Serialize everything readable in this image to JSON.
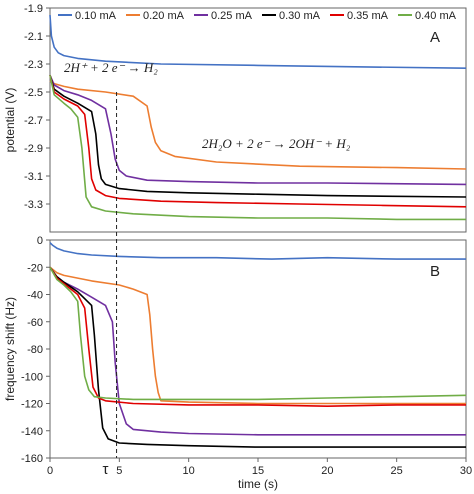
{
  "legend": [
    {
      "label": "0.10 mA",
      "color": "#4472C4"
    },
    {
      "label": "0.20 mA",
      "color": "#ED7D31"
    },
    {
      "label": "0.25 mA",
      "color": "#7030A0"
    },
    {
      "label": "0.30 mA",
      "color": "#000000"
    },
    {
      "label": "0.35 mA",
      "color": "#E00000"
    },
    {
      "label": "0.40 mA",
      "color": "#70AD47"
    }
  ],
  "chart_data": [
    {
      "type": "line",
      "panel_label": "A",
      "xlabel": "",
      "ylabel": "potential (V)",
      "xlim": [
        0,
        30
      ],
      "ylim": [
        -3.5,
        -1.9
      ],
      "yticks": [
        -1.9,
        -2.1,
        -2.3,
        -2.5,
        -2.7,
        -2.9,
        -3.1,
        -3.3
      ],
      "grid": false,
      "annotations": [
        "2H⁺ + 2 e⁻ → H₂",
        "2H₂O + 2 e⁻ → 2OH⁻ + H₂"
      ],
      "series": [
        {
          "name": "0.10 mA",
          "x": [
            0,
            0.1,
            0.3,
            0.6,
            1,
            2,
            4,
            8,
            15,
            22,
            30
          ],
          "y": [
            -1.95,
            -2.1,
            -2.18,
            -2.22,
            -2.24,
            -2.26,
            -2.28,
            -2.3,
            -2.31,
            -2.32,
            -2.33
          ]
        },
        {
          "name": "0.20 mA",
          "x": [
            0,
            0.3,
            1,
            2,
            4,
            6,
            7,
            7.3,
            7.6,
            8,
            9,
            12,
            18,
            25,
            30
          ],
          "y": [
            -2.42,
            -2.44,
            -2.46,
            -2.48,
            -2.5,
            -2.53,
            -2.6,
            -2.75,
            -2.86,
            -2.92,
            -2.96,
            -3.0,
            -3.03,
            -3.04,
            -3.05
          ]
        },
        {
          "name": "0.25 mA",
          "x": [
            0,
            0.3,
            1,
            2,
            3,
            4,
            4.4,
            4.7,
            5,
            5.5,
            7,
            10,
            15,
            20,
            30
          ],
          "y": [
            -2.38,
            -2.45,
            -2.49,
            -2.52,
            -2.56,
            -2.62,
            -2.8,
            -2.98,
            -3.06,
            -3.1,
            -3.13,
            -3.14,
            -3.15,
            -3.15,
            -3.16
          ]
        },
        {
          "name": "0.30 mA",
          "x": [
            0,
            0.3,
            1,
            2,
            3,
            3.3,
            3.5,
            3.7,
            4,
            5,
            7,
            10,
            15,
            20,
            30
          ],
          "y": [
            -2.38,
            -2.48,
            -2.53,
            -2.58,
            -2.64,
            -2.8,
            -3.02,
            -3.12,
            -3.16,
            -3.19,
            -3.21,
            -3.22,
            -3.23,
            -3.24,
            -3.25
          ]
        },
        {
          "name": "0.35 mA",
          "x": [
            0,
            0.3,
            1,
            2,
            2.5,
            2.8,
            3.0,
            3.3,
            4,
            5,
            8,
            12,
            18,
            24,
            30
          ],
          "y": [
            -2.38,
            -2.5,
            -2.55,
            -2.6,
            -2.66,
            -2.9,
            -3.12,
            -3.2,
            -3.24,
            -3.26,
            -3.28,
            -3.29,
            -3.3,
            -3.31,
            -3.32
          ]
        },
        {
          "name": "0.40 mA",
          "x": [
            0,
            0.3,
            1,
            1.5,
            2,
            2.3,
            2.6,
            3,
            4,
            6,
            10,
            15,
            20,
            25,
            30
          ],
          "y": [
            -2.38,
            -2.52,
            -2.58,
            -2.62,
            -2.68,
            -2.9,
            -3.25,
            -3.32,
            -3.35,
            -3.37,
            -3.39,
            -3.4,
            -3.4,
            -3.41,
            -3.41
          ]
        }
      ]
    },
    {
      "type": "line",
      "panel_label": "B",
      "xlabel": "time (s)",
      "ylabel": "frequency shift (Hz)",
      "xlim": [
        0,
        30
      ],
      "ylim": [
        -160,
        0
      ],
      "xticks": [
        0,
        5,
        10,
        15,
        20,
        25,
        30
      ],
      "yticks": [
        0,
        -20,
        -40,
        -60,
        -80,
        -100,
        -120,
        -140,
        -160
      ],
      "grid": false,
      "annotations": [
        "τ"
      ],
      "series": [
        {
          "name": "0.10 mA",
          "x": [
            0,
            0.2,
            0.5,
            1,
            2,
            3,
            5,
            8,
            12,
            16,
            20,
            25,
            30
          ],
          "y": [
            -2,
            -4,
            -6,
            -8,
            -10,
            -11,
            -12,
            -13,
            -13,
            -14,
            -13,
            -14,
            -14
          ]
        },
        {
          "name": "0.20 mA",
          "x": [
            0,
            0.5,
            1,
            2,
            3,
            5,
            6,
            7,
            7.2,
            7.4,
            7.6,
            7.8,
            8,
            10,
            15,
            20,
            25,
            30
          ],
          "y": [
            -20,
            -24,
            -26,
            -28,
            -30,
            -33,
            -36,
            -40,
            -55,
            -80,
            -100,
            -112,
            -118,
            -119,
            -120,
            -120,
            -120,
            -120
          ]
        },
        {
          "name": "0.25 mA",
          "x": [
            0,
            0.5,
            1,
            2,
            3,
            4,
            4.5,
            4.7,
            5,
            5.5,
            6,
            8,
            10,
            15,
            20,
            25,
            30
          ],
          "y": [
            -20,
            -27,
            -31,
            -36,
            -42,
            -48,
            -60,
            -90,
            -120,
            -135,
            -139,
            -141,
            -142,
            -143,
            -143,
            -143,
            -143
          ]
        },
        {
          "name": "0.30 mA",
          "x": [
            0,
            0.5,
            1,
            2,
            3,
            3.2,
            3.5,
            3.8,
            4.2,
            5,
            7,
            10,
            15,
            20,
            25,
            30
          ],
          "y": [
            -20,
            -27,
            -31,
            -38,
            -48,
            -70,
            -110,
            -138,
            -146,
            -149,
            -150,
            -151,
            -152,
            -152,
            -152,
            -152
          ]
        },
        {
          "name": "0.35 mA",
          "x": [
            0,
            0.5,
            1,
            2,
            2.5,
            2.8,
            3.1,
            3.5,
            4,
            6,
            10,
            15,
            20,
            25,
            30
          ],
          "y": [
            -20,
            -28,
            -32,
            -40,
            -50,
            -80,
            -108,
            -116,
            -118,
            -120,
            -121,
            -121,
            -122,
            -121,
            -121
          ]
        },
        {
          "name": "0.40 mA",
          "x": [
            0,
            0.5,
            1,
            1.5,
            2,
            2.2,
            2.5,
            2.8,
            3.2,
            4,
            6,
            10,
            15,
            20,
            25,
            30
          ],
          "y": [
            -20,
            -29,
            -33,
            -38,
            -45,
            -70,
            -100,
            -110,
            -115,
            -116,
            -117,
            -117,
            -117,
            -116,
            -115,
            -114
          ]
        }
      ]
    }
  ]
}
